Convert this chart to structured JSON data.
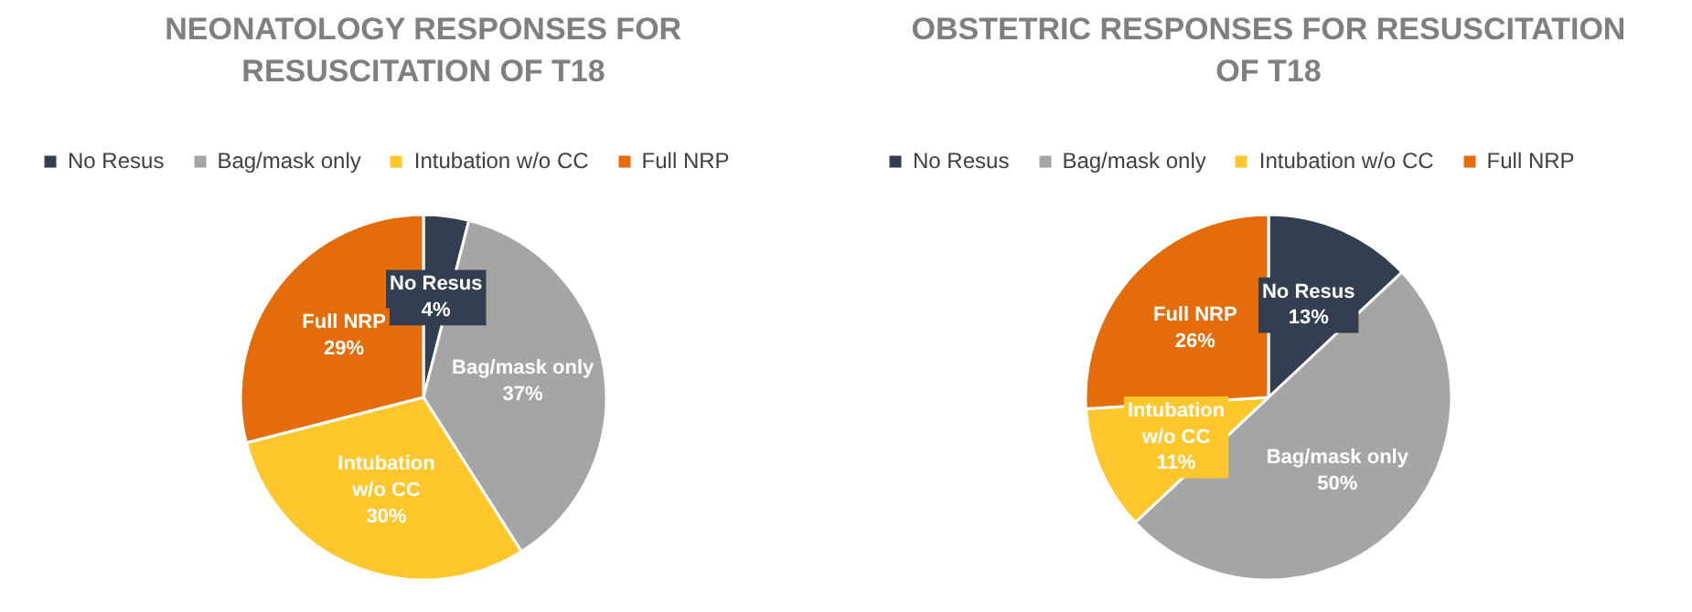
{
  "chart_data": [
    {
      "type": "pie",
      "title": "NEONATOLOGY RESPONSES FOR RESUSCITATION OF T18",
      "categories": [
        "No Resus",
        "Bag/mask only",
        "Intubation w/o CC",
        "Full NRP"
      ],
      "values": [
        4,
        37,
        30,
        29
      ],
      "value_labels": [
        "4%",
        "37%",
        "30%",
        "29%"
      ],
      "colors": [
        "#333f50",
        "#a5a5a5",
        "#ffc72c",
        "#e46c0a"
      ],
      "legend": "top"
    },
    {
      "type": "pie",
      "title": "OBSTETRIC RESPONSES FOR RESUSCITATION OF T18",
      "categories": [
        "No Resus",
        "Bag/mask only",
        "Intubation w/o CC",
        "Full NRP"
      ],
      "values": [
        13,
        50,
        11,
        26
      ],
      "value_labels": [
        "13%",
        "50%",
        "11%",
        "26%"
      ],
      "colors": [
        "#333f50",
        "#a5a5a5",
        "#ffc72c",
        "#e46c0a"
      ],
      "legend": "top"
    }
  ]
}
